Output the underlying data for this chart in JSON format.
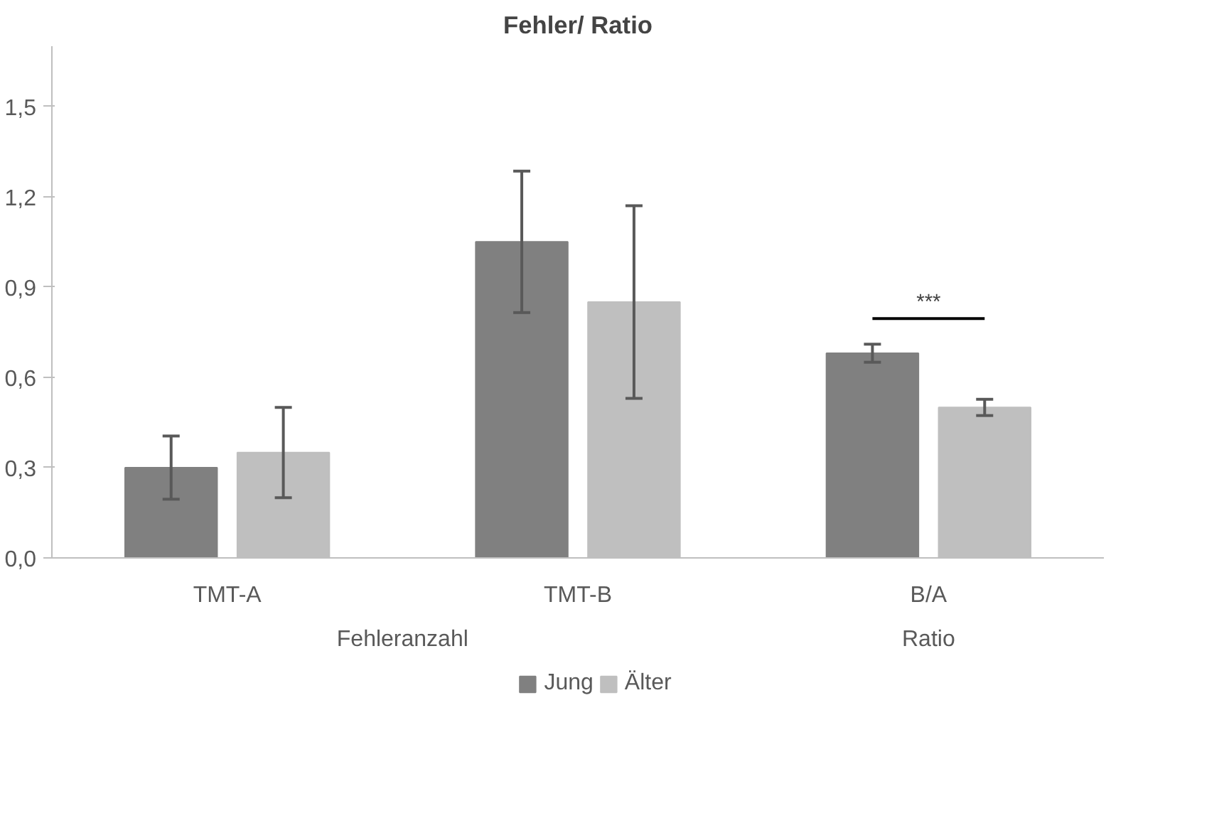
{
  "chart_data": {
    "type": "bar",
    "title": "Fehler/ Ratio",
    "categories": [
      "TMT-A",
      "TMT-B",
      "B/A"
    ],
    "series": [
      {
        "name": "Jung",
        "color": "#808080",
        "values": [
          0.3,
          1.05,
          0.68
        ],
        "errors": [
          0.105,
          0.235,
          0.03
        ]
      },
      {
        "name": "Älter",
        "color": "#bfbfbf",
        "values": [
          0.35,
          0.85,
          0.5
        ],
        "errors": [
          0.15,
          0.32,
          0.027
        ]
      }
    ],
    "ylim": [
      0,
      1.7
    ],
    "yticks": [
      {
        "value": 0,
        "label": "0,0"
      },
      {
        "value": 0.3,
        "label": "0,3"
      },
      {
        "value": 0.6,
        "label": "0,6"
      },
      {
        "value": 0.9,
        "label": "0,9"
      },
      {
        "value": 1.2,
        "label": "1,2"
      },
      {
        "value": 1.5,
        "label": "1,5"
      }
    ],
    "annotations": [
      "***",
      "Fehleranzahl",
      "Ratio"
    ],
    "grid": false,
    "legend": "bottom"
  }
}
